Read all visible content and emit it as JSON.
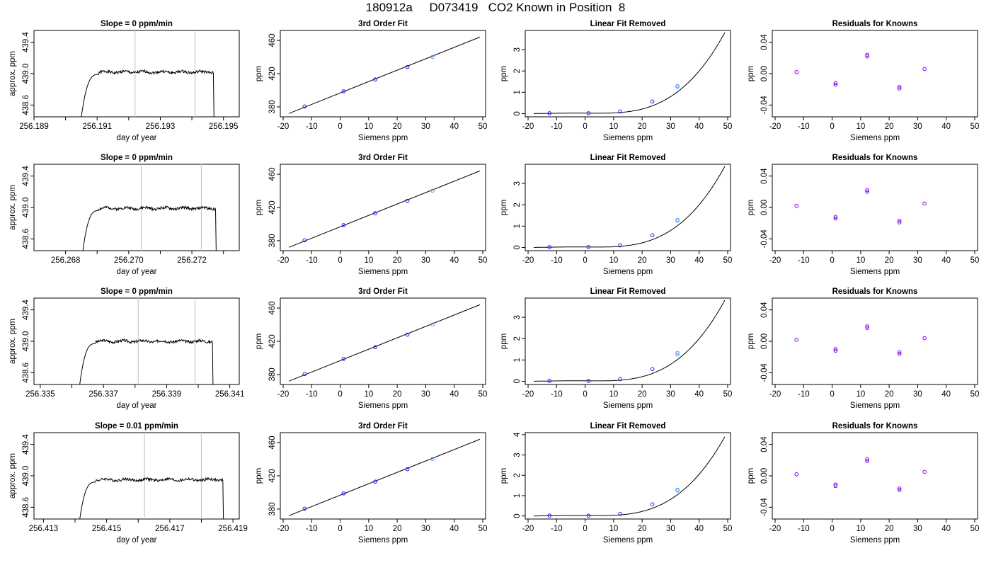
{
  "figure": {
    "title": "180912a     D073419   CO2 Known in Position  8"
  },
  "colors": {
    "axis": "#000000",
    "line": "#000000",
    "vline": "#c8c8c8",
    "point_primary": "#4b00ff",
    "point_secondary": "#5aa0ff",
    "point_residual": "#8000ff"
  },
  "chart_data": [
    {
      "row": 1,
      "col": 1,
      "type": "line",
      "title": "Slope =  0  ppm/min",
      "xlabel": "day of year",
      "ylabel": "approx. ppm",
      "xlim": [
        256.189,
        256.1955
      ],
      "ylim": [
        438.45,
        439.55
      ],
      "xticks": [
        256.189,
        256.19,
        256.191,
        256.192,
        256.193,
        256.194,
        256.195
      ],
      "xticklabels": [
        "256.189",
        "",
        "256.191",
        "",
        "256.193",
        "",
        "256.195"
      ],
      "yticks": [
        438.6,
        439.0,
        439.4
      ],
      "yticklabels": [
        "438.6",
        "439.0",
        "439.4"
      ],
      "vlines": [
        256.1922,
        256.1941
      ],
      "trace": {
        "x_start": 256.1905,
        "x_rise_end": 256.19105,
        "x_drop": 256.19468,
        "plateau": 439.02,
        "drop_end": 438.45,
        "start": 438.45,
        "seed": 1
      }
    },
    {
      "row": 1,
      "col": 2,
      "type": "line",
      "title": "3rd Order Fit",
      "xlabel": "Siemens ppm",
      "ylabel": "ppm",
      "xlim": [
        -21,
        51
      ],
      "ylim": [
        368,
        472
      ],
      "xticks": [
        -20,
        -10,
        0,
        10,
        20,
        30,
        40,
        50
      ],
      "xticklabels": [
        "-20",
        "-10",
        "0",
        "10",
        "20",
        "30",
        "40",
        "50"
      ],
      "yticks": [
        380,
        420,
        460
      ],
      "yticklabels": [
        "380",
        "420",
        "460"
      ],
      "line": {
        "x": [
          -18,
          49
        ],
        "y": [
          372,
          464
        ]
      },
      "points": [
        {
          "x": -12.5,
          "y": 380.5
        },
        {
          "x": 1.2,
          "y": 398.8
        },
        {
          "x": 12.3,
          "y": 413.0
        },
        {
          "x": 23.6,
          "y": 428.0
        }
      ],
      "points_secondary": [
        {
          "x": 32.4,
          "y": 440.2
        }
      ]
    },
    {
      "row": 1,
      "col": 3,
      "type": "line",
      "title": "Linear Fit Removed",
      "xlabel": "Siemens ppm",
      "ylabel": "ppm",
      "xlim": [
        -21,
        51
      ],
      "ylim": [
        -0.15,
        3.9
      ],
      "xticks": [
        -20,
        -10,
        0,
        10,
        20,
        30,
        40,
        50
      ],
      "xticklabels": [
        "-20",
        "-10",
        "0",
        "10",
        "20",
        "30",
        "40",
        "50"
      ],
      "yticks": [
        0,
        1,
        2,
        3
      ],
      "yticklabels": [
        "0",
        "1",
        "2",
        "3"
      ],
      "curve": {
        "x_from": -18,
        "x_to": 49,
        "y_end": 3.8
      },
      "points": [
        {
          "x": -12.5,
          "y": 0.02
        },
        {
          "x": 1.2,
          "y": 0.02
        },
        {
          "x": 12.3,
          "y": 0.1
        },
        {
          "x": 23.6,
          "y": 0.57
        }
      ],
      "points_secondary": [
        {
          "x": 32.4,
          "y": 1.25
        },
        {
          "x": 32.4,
          "y": 1.3
        }
      ]
    },
    {
      "row": 1,
      "col": 4,
      "type": "scatter",
      "title": "Residuals for Knowns",
      "xlabel": "Siemens ppm",
      "ylabel": "ppm",
      "xlim": [
        -21,
        51
      ],
      "ylim": [
        -0.055,
        0.055
      ],
      "xticks": [
        -20,
        -10,
        0,
        10,
        20,
        30,
        40,
        50
      ],
      "xticklabels": [
        "-20",
        "-10",
        "0",
        "10",
        "20",
        "30",
        "40",
        "50"
      ],
      "yticks": [
        -0.04,
        0.0,
        0.04
      ],
      "yticklabels": [
        "-0.04",
        "0.00",
        "0.04"
      ],
      "points": [
        {
          "x": -12.5,
          "y": 0.002
        },
        {
          "x": 1.2,
          "y": -0.012
        },
        {
          "x": 1.2,
          "y": -0.014
        },
        {
          "x": 12.3,
          "y": 0.022
        },
        {
          "x": 12.3,
          "y": 0.024
        },
        {
          "x": 23.6,
          "y": -0.017
        },
        {
          "x": 23.6,
          "y": -0.019
        },
        {
          "x": 32.4,
          "y": 0.006
        }
      ]
    },
    {
      "row": 2,
      "col": 1,
      "type": "line",
      "title": "Slope =  0  ppm/min",
      "xlabel": "day of year",
      "ylabel": "approx. ppm",
      "xlim": [
        256.267,
        256.2735
      ],
      "ylim": [
        438.45,
        439.55
      ],
      "xticks": [
        256.268,
        256.269,
        256.27,
        256.271,
        256.272,
        256.273
      ],
      "xticklabels": [
        "256.268",
        "",
        "256.270",
        "",
        "256.272",
        ""
      ],
      "yticks": [
        438.6,
        439.0,
        439.4
      ],
      "yticklabels": [
        "438.6",
        "439.0",
        "439.4"
      ],
      "vlines": [
        256.2704,
        256.2723
      ],
      "trace": {
        "x_start": 256.26855,
        "x_rise_end": 256.26905,
        "x_drop": 256.27275,
        "plateau": 438.99,
        "drop_end": 438.45,
        "start": 438.45,
        "seed": 2
      }
    },
    {
      "row": 2,
      "col": 2,
      "type": "line",
      "title": "3rd Order Fit",
      "xlabel": "Siemens ppm",
      "ylabel": "ppm",
      "xlim": [
        -21,
        51
      ],
      "ylim": [
        368,
        472
      ],
      "xticks": [
        -20,
        -10,
        0,
        10,
        20,
        30,
        40,
        50
      ],
      "xticklabels": [
        "-20",
        "-10",
        "0",
        "10",
        "20",
        "30",
        "40",
        "50"
      ],
      "yticks": [
        380,
        420,
        460
      ],
      "yticklabels": [
        "380",
        "420",
        "460"
      ],
      "line": {
        "x": [
          -18,
          49
        ],
        "y": [
          372,
          464
        ]
      },
      "points": [
        {
          "x": -12.5,
          "y": 380.5
        },
        {
          "x": 1.2,
          "y": 398.8
        },
        {
          "x": 12.3,
          "y": 413.0
        },
        {
          "x": 23.6,
          "y": 428.0
        }
      ],
      "points_secondary": [
        {
          "x": 32.4,
          "y": 440.2
        }
      ]
    },
    {
      "row": 2,
      "col": 3,
      "type": "line",
      "title": "Linear Fit Removed",
      "xlabel": "Siemens ppm",
      "ylabel": "ppm",
      "xlim": [
        -21,
        51
      ],
      "ylim": [
        -0.15,
        3.9
      ],
      "xticks": [
        -20,
        -10,
        0,
        10,
        20,
        30,
        40,
        50
      ],
      "xticklabels": [
        "-20",
        "-10",
        "0",
        "10",
        "20",
        "30",
        "40",
        "50"
      ],
      "yticks": [
        0,
        1,
        2,
        3
      ],
      "yticklabels": [
        "0",
        "1",
        "2",
        "3"
      ],
      "curve": {
        "x_from": -18,
        "x_to": 49,
        "y_end": 3.8
      },
      "points": [
        {
          "x": -12.5,
          "y": 0.02
        },
        {
          "x": 1.2,
          "y": 0.02
        },
        {
          "x": 12.3,
          "y": 0.1
        },
        {
          "x": 23.6,
          "y": 0.57
        }
      ],
      "points_secondary": [
        {
          "x": 32.4,
          "y": 1.25
        },
        {
          "x": 32.4,
          "y": 1.3
        }
      ]
    },
    {
      "row": 2,
      "col": 4,
      "type": "scatter",
      "title": "Residuals for Knowns",
      "xlabel": "Siemens ppm",
      "ylabel": "ppm",
      "xlim": [
        -21,
        51
      ],
      "ylim": [
        -0.055,
        0.055
      ],
      "xticks": [
        -20,
        -10,
        0,
        10,
        20,
        30,
        40,
        50
      ],
      "xticklabels": [
        "-20",
        "-10",
        "0",
        "10",
        "20",
        "30",
        "40",
        "50"
      ],
      "yticks": [
        -0.04,
        0.0,
        0.04
      ],
      "yticklabels": [
        "-0.04",
        "0.00",
        "0.04"
      ],
      "points": [
        {
          "x": -12.5,
          "y": 0.002
        },
        {
          "x": 1.2,
          "y": -0.012
        },
        {
          "x": 1.2,
          "y": -0.014
        },
        {
          "x": 12.3,
          "y": 0.02
        },
        {
          "x": 12.3,
          "y": 0.022
        },
        {
          "x": 23.6,
          "y": -0.017
        },
        {
          "x": 23.6,
          "y": -0.019
        },
        {
          "x": 32.4,
          "y": 0.005
        }
      ]
    },
    {
      "row": 3,
      "col": 1,
      "type": "line",
      "title": "Slope =  0  ppm/min",
      "xlabel": "day of year",
      "ylabel": "approx. ppm",
      "xlim": [
        256.3348,
        256.3413
      ],
      "ylim": [
        438.45,
        439.55
      ],
      "xticks": [
        256.335,
        256.336,
        256.337,
        256.338,
        256.339,
        256.34,
        256.341
      ],
      "xticklabels": [
        "256.335",
        "",
        "256.337",
        "",
        "256.339",
        "",
        "256.341"
      ],
      "yticks": [
        438.6,
        439.0,
        439.4
      ],
      "yticklabels": [
        "438.6",
        "439.0",
        "439.4"
      ],
      "vlines": [
        256.3381,
        256.3399
      ],
      "trace": {
        "x_start": 256.33625,
        "x_rise_end": 256.33675,
        "x_drop": 256.34045,
        "plateau": 439.0,
        "drop_end": 438.45,
        "start": 438.45,
        "seed": 3
      }
    },
    {
      "row": 3,
      "col": 2,
      "type": "line",
      "title": "3rd Order Fit",
      "xlabel": "Siemens ppm",
      "ylabel": "ppm",
      "xlim": [
        -21,
        51
      ],
      "ylim": [
        368,
        472
      ],
      "xticks": [
        -20,
        -10,
        0,
        10,
        20,
        30,
        40,
        50
      ],
      "xticklabels": [
        "-20",
        "-10",
        "0",
        "10",
        "20",
        "30",
        "40",
        "50"
      ],
      "yticks": [
        380,
        420,
        460
      ],
      "yticklabels": [
        "380",
        "420",
        "460"
      ],
      "line": {
        "x": [
          -18,
          49
        ],
        "y": [
          372,
          464
        ]
      },
      "points": [
        {
          "x": -12.5,
          "y": 380.5
        },
        {
          "x": 1.2,
          "y": 398.8
        },
        {
          "x": 12.3,
          "y": 413.0
        },
        {
          "x": 23.6,
          "y": 428.0
        }
      ],
      "points_secondary": [
        {
          "x": 32.4,
          "y": 440.2
        }
      ]
    },
    {
      "row": 3,
      "col": 3,
      "type": "line",
      "title": "Linear Fit Removed",
      "xlabel": "Siemens ppm",
      "ylabel": "ppm",
      "xlim": [
        -21,
        51
      ],
      "ylim": [
        -0.15,
        3.9
      ],
      "xticks": [
        -20,
        -10,
        0,
        10,
        20,
        30,
        40,
        50
      ],
      "xticklabels": [
        "-20",
        "-10",
        "0",
        "10",
        "20",
        "30",
        "40",
        "50"
      ],
      "yticks": [
        0,
        1,
        2,
        3
      ],
      "yticklabels": [
        "0",
        "1",
        "2",
        "3"
      ],
      "curve": {
        "x_from": -18,
        "x_to": 49,
        "y_end": 3.8
      },
      "points": [
        {
          "x": -12.5,
          "y": 0.02
        },
        {
          "x": 1.2,
          "y": 0.02
        },
        {
          "x": 12.3,
          "y": 0.1
        },
        {
          "x": 23.6,
          "y": 0.57
        }
      ],
      "points_secondary": [
        {
          "x": 32.4,
          "y": 1.25
        },
        {
          "x": 32.4,
          "y": 1.33
        }
      ]
    },
    {
      "row": 3,
      "col": 4,
      "type": "scatter",
      "title": "Residuals for Knowns",
      "xlabel": "Siemens ppm",
      "ylabel": "ppm",
      "xlim": [
        -21,
        51
      ],
      "ylim": [
        -0.055,
        0.055
      ],
      "xticks": [
        -20,
        -10,
        0,
        10,
        20,
        30,
        40,
        50
      ],
      "xticklabels": [
        "-20",
        "-10",
        "0",
        "10",
        "20",
        "30",
        "40",
        "50"
      ],
      "yticks": [
        -0.04,
        0.0,
        0.04
      ],
      "yticklabels": [
        "-0.04",
        "0.00",
        "0.04"
      ],
      "points": [
        {
          "x": -12.5,
          "y": 0.002
        },
        {
          "x": 1.2,
          "y": -0.01
        },
        {
          "x": 1.2,
          "y": -0.012
        },
        {
          "x": 12.3,
          "y": 0.017
        },
        {
          "x": 12.3,
          "y": 0.019
        },
        {
          "x": 23.6,
          "y": -0.014
        },
        {
          "x": 23.6,
          "y": -0.016
        },
        {
          "x": 32.4,
          "y": 0.004
        }
      ]
    },
    {
      "row": 4,
      "col": 1,
      "type": "line",
      "title": "Slope =  0.01  ppm/min",
      "xlabel": "day of year",
      "ylabel": "approx. ppm",
      "xlim": [
        256.4127,
        256.4192
      ],
      "ylim": [
        438.45,
        439.55
      ],
      "xticks": [
        256.413,
        256.414,
        256.415,
        256.416,
        256.417,
        256.418,
        256.419
      ],
      "xticklabels": [
        "256.413",
        "",
        "256.415",
        "",
        "256.417",
        "",
        "256.419"
      ],
      "yticks": [
        438.6,
        439.0,
        439.4
      ],
      "yticklabels": [
        "438.6",
        "439.0",
        "439.4"
      ],
      "vlines": [
        256.4162,
        256.418
      ],
      "trace": {
        "x_start": 256.41415,
        "x_rise_end": 256.41465,
        "x_drop": 256.41868,
        "plateau": 438.95,
        "drop_end": 438.45,
        "start": 438.45,
        "seed": 4
      }
    },
    {
      "row": 4,
      "col": 2,
      "type": "line",
      "title": "3rd Order Fit",
      "xlabel": "Siemens ppm",
      "ylabel": "ppm",
      "xlim": [
        -21,
        51
      ],
      "ylim": [
        368,
        472
      ],
      "xticks": [
        -20,
        -10,
        0,
        10,
        20,
        30,
        40,
        50
      ],
      "xticklabels": [
        "-20",
        "-10",
        "0",
        "10",
        "20",
        "30",
        "40",
        "50"
      ],
      "yticks": [
        380,
        420,
        460
      ],
      "yticklabels": [
        "380",
        "420",
        "460"
      ],
      "line": {
        "x": [
          -18,
          49
        ],
        "y": [
          372,
          464
        ]
      },
      "points": [
        {
          "x": -12.5,
          "y": 380.5
        },
        {
          "x": 1.2,
          "y": 398.8
        },
        {
          "x": 12.3,
          "y": 413.0
        },
        {
          "x": 23.6,
          "y": 428.0
        }
      ],
      "points_secondary": [
        {
          "x": 32.4,
          "y": 440.2
        }
      ]
    },
    {
      "row": 4,
      "col": 3,
      "type": "line",
      "title": "Linear Fit Removed",
      "xlabel": "Siemens ppm",
      "ylabel": "ppm",
      "xlim": [
        -21,
        51
      ],
      "ylim": [
        -0.15,
        4.1
      ],
      "xticks": [
        -20,
        -10,
        0,
        10,
        20,
        30,
        40,
        50
      ],
      "xticklabels": [
        "-20",
        "-10",
        "0",
        "10",
        "20",
        "30",
        "40",
        "50"
      ],
      "yticks": [
        0,
        1,
        2,
        3,
        4
      ],
      "yticklabels": [
        "0",
        "1",
        "2",
        "3",
        "4"
      ],
      "curve": {
        "x_from": -18,
        "x_to": 49,
        "y_end": 3.9
      },
      "points": [
        {
          "x": -12.5,
          "y": 0.02
        },
        {
          "x": 1.2,
          "y": 0.02
        },
        {
          "x": 12.3,
          "y": 0.1
        },
        {
          "x": 23.6,
          "y": 0.57
        }
      ],
      "points_secondary": [
        {
          "x": 32.4,
          "y": 1.25
        },
        {
          "x": 32.4,
          "y": 1.3
        }
      ]
    },
    {
      "row": 4,
      "col": 4,
      "type": "scatter",
      "title": "Residuals for Knowns",
      "xlabel": "Siemens ppm",
      "ylabel": "ppm",
      "xlim": [
        -21,
        51
      ],
      "ylim": [
        -0.055,
        0.055
      ],
      "xticks": [
        -20,
        -10,
        0,
        10,
        20,
        30,
        40,
        50
      ],
      "xticklabels": [
        "-20",
        "-10",
        "0",
        "10",
        "20",
        "30",
        "40",
        "50"
      ],
      "yticks": [
        -0.04,
        0.0,
        0.04
      ],
      "yticklabels": [
        "-0.04",
        "0.00",
        "0.04"
      ],
      "points": [
        {
          "x": -12.5,
          "y": 0.002
        },
        {
          "x": 1.2,
          "y": -0.011
        },
        {
          "x": 1.2,
          "y": -0.013
        },
        {
          "x": 12.3,
          "y": 0.019
        },
        {
          "x": 12.3,
          "y": 0.021
        },
        {
          "x": 23.6,
          "y": -0.016
        },
        {
          "x": 23.6,
          "y": -0.018
        },
        {
          "x": 32.4,
          "y": 0.005
        }
      ]
    }
  ]
}
